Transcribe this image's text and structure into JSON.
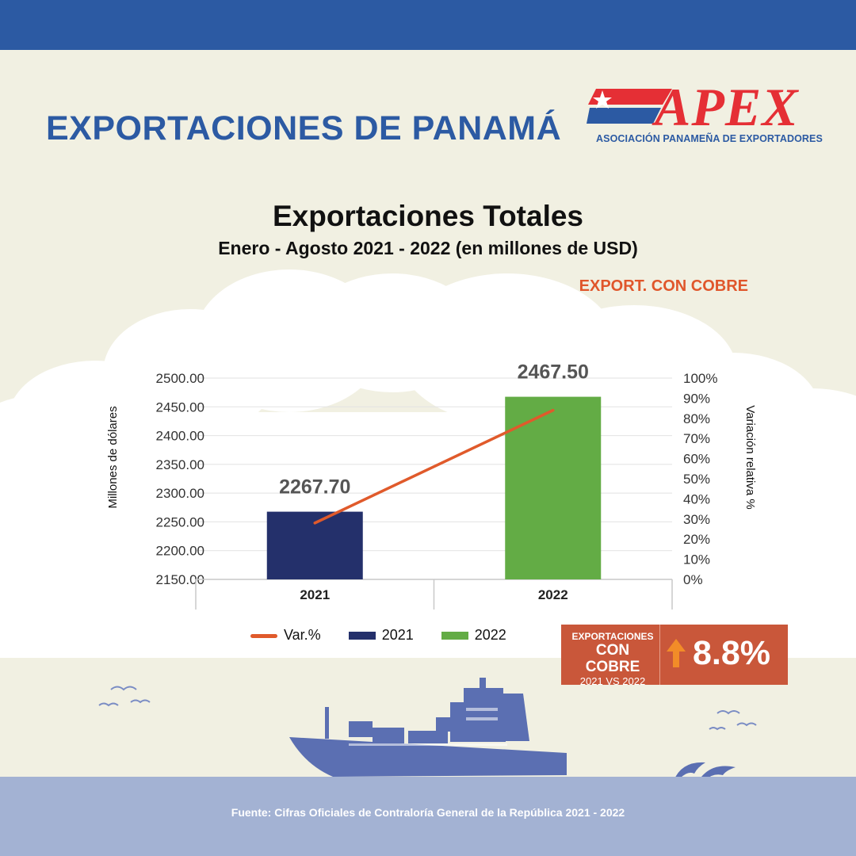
{
  "header": {
    "title": "EXPORTACIONES DE PANAMÁ",
    "logo_word": "APEX",
    "logo_subtitle": "ASOCIACIÓN PANAMEÑA DE EXPORTADORES"
  },
  "colors": {
    "header_blue": "#2c5aa3",
    "bar_2021": "#24306b",
    "bar_2022": "#63ac45",
    "var_line": "#e05a2b",
    "badge": "#c9573a",
    "accent_orange": "#e0562b",
    "sea": "#a3b2d3",
    "ship": "#5b6fb2"
  },
  "export_tag": "EXPORT. CON COBRE",
  "chart_data": {
    "type": "bar",
    "title": "Exportaciones Totales",
    "subtitle": "Enero - Agosto 2021 - 2022 (en millones de USD)",
    "ylabel": "Millones de dólares",
    "y2label": "Variación relativa %",
    "categories": [
      "2021",
      "2022"
    ],
    "series": [
      {
        "name": "2021",
        "values": [
          2267.7,
          null
        ]
      },
      {
        "name": "2022",
        "values": [
          null,
          2467.5
        ]
      },
      {
        "name": "Var.%",
        "type": "line",
        "axis": "y2",
        "values": [
          28,
          84
        ]
      }
    ],
    "data_labels": [
      "2267.70",
      "2467.50"
    ],
    "ylim": [
      2150,
      2500
    ],
    "yticks": [
      "2150.00",
      "2200.00",
      "2250.00",
      "2300.00",
      "2350.00",
      "2400.00",
      "2450.00",
      "2500.00"
    ],
    "y2lim": [
      0,
      100
    ],
    "y2ticks": [
      "0%",
      "10%",
      "20%",
      "30%",
      "40%",
      "50%",
      "60%",
      "70%",
      "80%",
      "90%",
      "100%"
    ],
    "legend_position": "bottom",
    "grid": true
  },
  "legend": [
    {
      "label": "Var.%",
      "kind": "line"
    },
    {
      "label": "2021",
      "kind": "bar"
    },
    {
      "label": "2022",
      "kind": "bar"
    }
  ],
  "badge": {
    "line1": "EXPORTACIONES",
    "line2": "CON COBRE",
    "line3": "2021 VS 2022",
    "value": "8.8%",
    "arrow_icon": "arrow-up-icon"
  },
  "footer": {
    "source": "Fuente: Cifras Oficiales de Contraloría General de la República 2021 - 2022"
  }
}
